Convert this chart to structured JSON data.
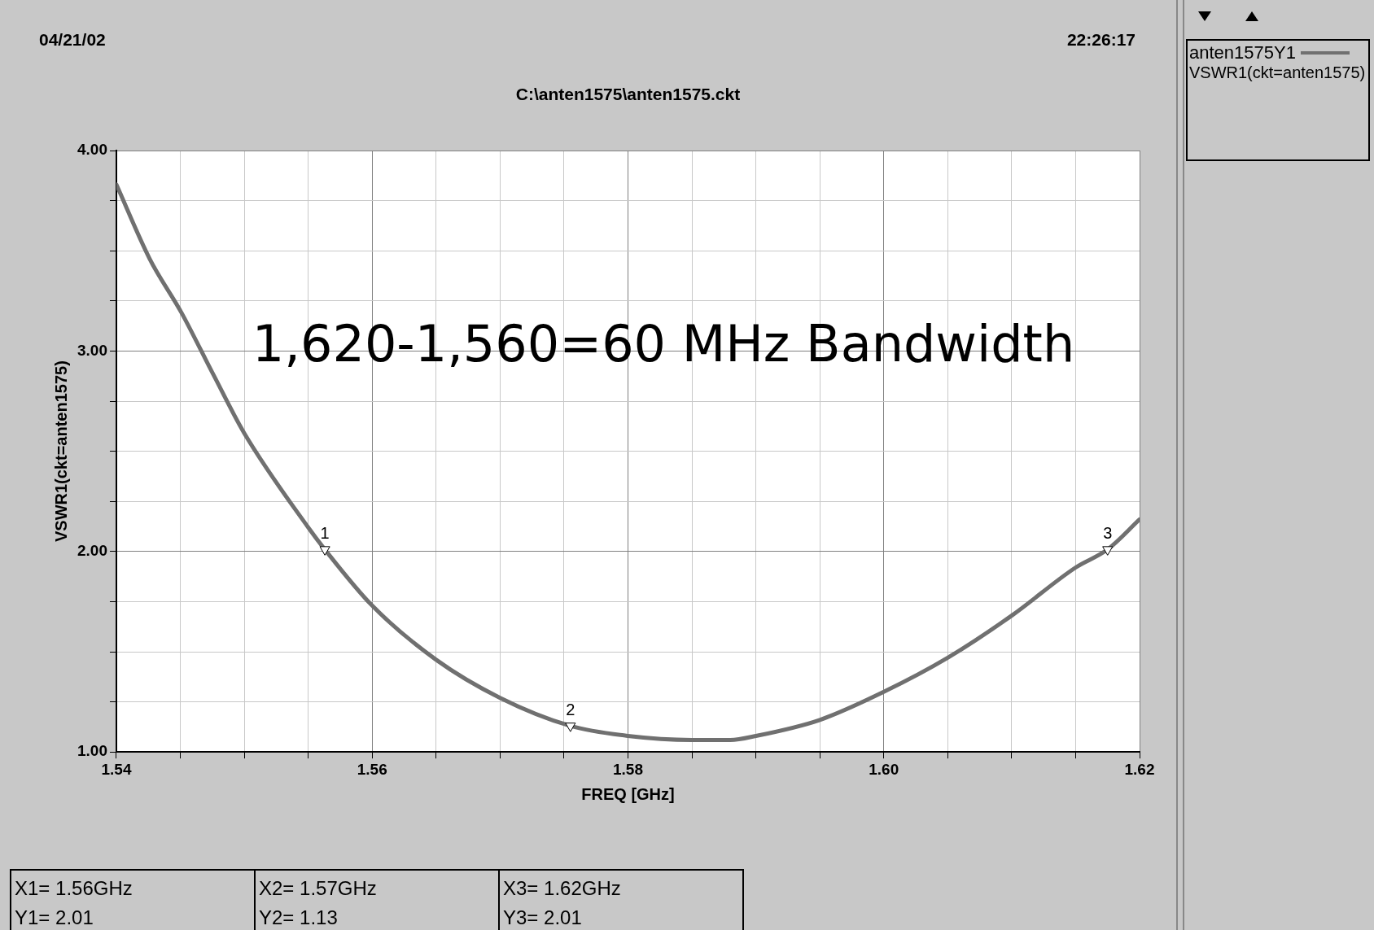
{
  "chart_data": {
    "type": "line",
    "xlabel": "FREQ [GHz]",
    "ylabel": "VSWR1(ckt=anten1575)",
    "annotations": [
      "04/21/02",
      "22:26:17",
      "C:\\anten1575\\anten1575.ckt",
      "1,620-1,560=60 MHz Bandwidth",
      "VSWR1(ckt=anten1575)",
      "X1= 1.56GHz",
      "Y1= 2.01",
      "X2= 1.57GHz",
      "Y2= 1.13",
      "X3= 1.62GHz",
      "Y3= 2.01",
      {
        "text": "1",
        "x": 1.5563,
        "y": 2.01
      },
      {
        "text": "2",
        "x": 1.5755,
        "y": 1.13
      },
      {
        "text": "3",
        "x": 1.6175,
        "y": 2.01
      }
    ],
    "series": [
      {
        "name": "anten1575Y1",
        "color": "#707070",
        "x": [
          1.54,
          1.5426,
          1.5451,
          1.5476,
          1.55,
          1.555,
          1.5563,
          1.56,
          1.565,
          1.57,
          1.5755,
          1.58,
          1.585,
          1.588,
          1.59,
          1.595,
          1.6,
          1.605,
          1.61,
          1.615,
          1.6175,
          1.62
        ],
        "values": [
          3.83,
          3.46,
          3.19,
          2.88,
          2.59,
          2.12,
          2.01,
          1.73,
          1.46,
          1.27,
          1.13,
          1.08,
          1.06,
          1.06,
          1.08,
          1.16,
          1.3,
          1.47,
          1.68,
          1.92,
          2.01,
          2.16
        ]
      },
      {
        "type": "scatter",
        "color": "#000000",
        "marker": "triangle",
        "x": [
          1.5563,
          1.5755,
          1.6175
        ],
        "values": [
          2.01,
          1.13,
          2.01
        ]
      }
    ],
    "xlim": [
      1.54,
      1.62
    ],
    "xticks": [
      {
        "value": 1.54,
        "label": "1.54"
      },
      {
        "value": 1.545,
        "label": null
      },
      {
        "value": 1.55,
        "label": null
      },
      {
        "value": 1.555,
        "label": null
      },
      {
        "value": 1.56,
        "label": "1.56"
      },
      {
        "value": 1.565,
        "label": null
      },
      {
        "value": 1.57,
        "label": null
      },
      {
        "value": 1.575,
        "label": null
      },
      {
        "value": 1.58,
        "label": "1.58"
      },
      {
        "value": 1.585,
        "label": null
      },
      {
        "value": 1.59,
        "label": null
      },
      {
        "value": 1.595,
        "label": null
      },
      {
        "value": 1.6,
        "label": "1.60"
      },
      {
        "value": 1.605,
        "label": null
      },
      {
        "value": 1.61,
        "label": null
      },
      {
        "value": 1.615,
        "label": null
      },
      {
        "value": 1.62,
        "label": "1.62"
      }
    ],
    "ylim": [
      1,
      4
    ],
    "yticks": [
      {
        "value": 1,
        "label": "1.00"
      },
      {
        "value": 1.25,
        "label": null
      },
      {
        "value": 1.5,
        "label": null
      },
      {
        "value": 1.75,
        "label": null
      },
      {
        "value": 2,
        "label": "2.00"
      },
      {
        "value": 2.25,
        "label": null
      },
      {
        "value": 2.5,
        "label": null
      },
      {
        "value": 2.75,
        "label": null
      },
      {
        "value": 3,
        "label": "3.00"
      },
      {
        "value": 3.25,
        "label": null
      },
      {
        "value": 3.5,
        "label": null
      },
      {
        "value": 3.75,
        "label": null
      },
      {
        "value": 4,
        "label": "4.00"
      }
    ],
    "grid": true,
    "legend": "top right",
    "marker": "none",
    "line_style": "solid"
  }
}
